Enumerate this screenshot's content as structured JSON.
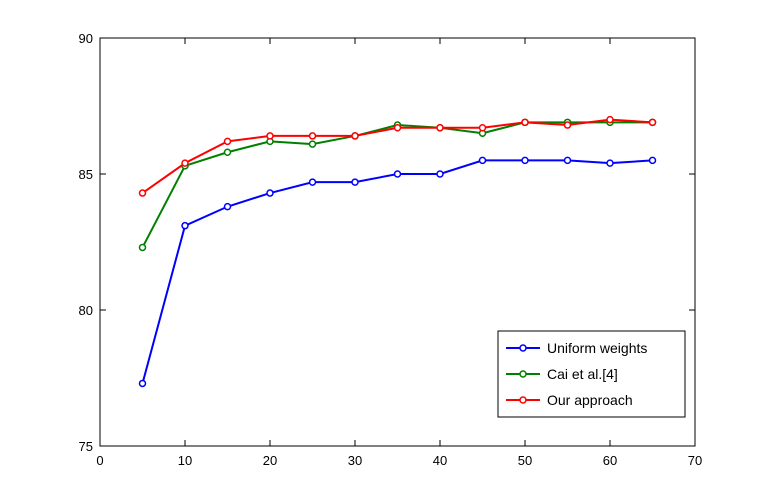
{
  "chart_data": {
    "type": "line",
    "x": [
      5,
      10,
      15,
      20,
      25,
      30,
      35,
      40,
      45,
      50,
      55,
      60,
      65
    ],
    "xlim": [
      0,
      70
    ],
    "ylim": [
      75,
      90
    ],
    "xticks": [
      0,
      10,
      20,
      30,
      40,
      50,
      60,
      70
    ],
    "yticks": [
      75,
      80,
      85,
      90
    ],
    "grid": false,
    "legend_position": "bottom-right",
    "series": [
      {
        "name": "Uniform weights",
        "color": "#0000ff",
        "values": [
          77.3,
          83.1,
          83.8,
          84.3,
          84.7,
          84.7,
          85.0,
          85.0,
          85.5,
          85.5,
          85.5,
          85.4,
          85.5
        ]
      },
      {
        "name": "Cai et al.[4]",
        "color": "#008000",
        "values": [
          82.3,
          85.3,
          85.8,
          86.2,
          86.1,
          86.4,
          86.8,
          86.7,
          86.5,
          86.9,
          86.9,
          86.9,
          86.9
        ]
      },
      {
        "name": "Our approach",
        "color": "#ff0000",
        "values": [
          84.3,
          85.4,
          86.2,
          86.4,
          86.4,
          86.4,
          86.7,
          86.7,
          86.7,
          86.9,
          86.8,
          87.0,
          86.9
        ]
      }
    ]
  }
}
